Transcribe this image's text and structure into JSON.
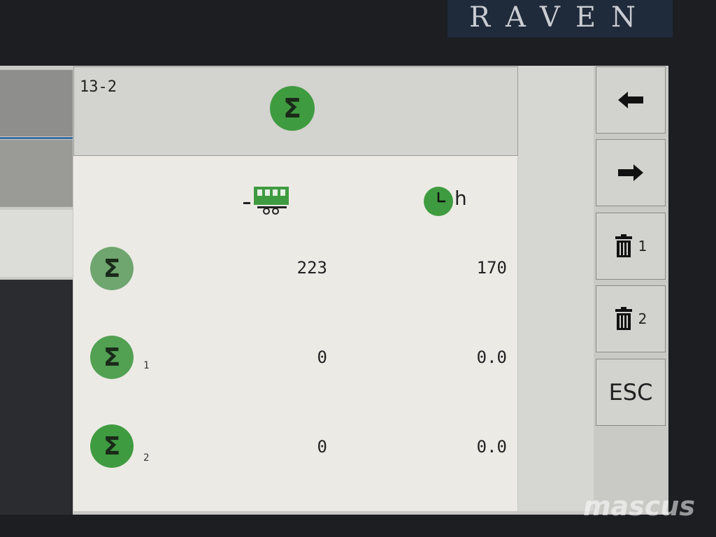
{
  "brand": {
    "logo": "RAVEN"
  },
  "header": {
    "page_id": "13-2",
    "icon": "sigma-total-icon"
  },
  "columns": {
    "col1_icon": "trailer-icon",
    "col2_icon": "clock-icon",
    "col2_unit": "h"
  },
  "rows": [
    {
      "icon": "sigma-total-icon",
      "subscript": "",
      "col1": "223",
      "col2": "170"
    },
    {
      "icon": "sigma-total-icon",
      "subscript": "1",
      "col1": "0",
      "col2": "0.0"
    },
    {
      "icon": "sigma-total-icon",
      "subscript": "2",
      "col1": "0",
      "col2": "0.0"
    }
  ],
  "buttons": {
    "back": "arrow-left-icon",
    "forward": "arrow-right-icon",
    "delete1_label": "1",
    "delete2_label": "2",
    "esc_label": "ESC"
  },
  "colors": {
    "icon_green": "#3f9b3f",
    "logo_bg": "#1f2a3a"
  },
  "watermark": "mascus"
}
